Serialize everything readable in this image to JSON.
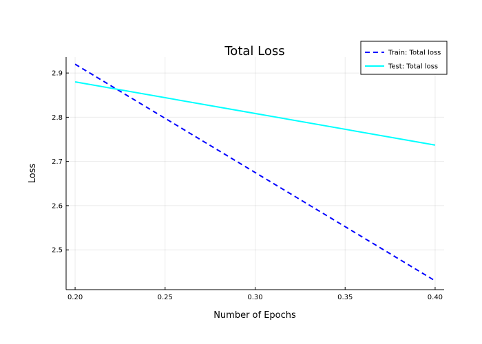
{
  "chart_data": {
    "type": "line",
    "title": "Total Loss",
    "xlabel": "Number of Epochs",
    "ylabel": "Loss",
    "x": [
      0.2,
      0.4
    ],
    "series": [
      {
        "name": "Train: Total loss",
        "values": [
          2.92,
          2.43
        ],
        "color": "#0000ff",
        "style": "dashed"
      },
      {
        "name": "Test: Total loss",
        "values": [
          2.88,
          2.737
        ],
        "color": "#00ffff",
        "style": "solid"
      }
    ],
    "xlim": [
      0.195,
      0.405
    ],
    "ylim": [
      2.41,
      2.936
    ],
    "xticks": [
      "0.20",
      "0.25",
      "0.30",
      "0.35",
      "0.40"
    ],
    "yticks": [
      "2.5",
      "2.6",
      "2.7",
      "2.8",
      "2.9"
    ],
    "grid": true,
    "legend_position": "top-right"
  }
}
